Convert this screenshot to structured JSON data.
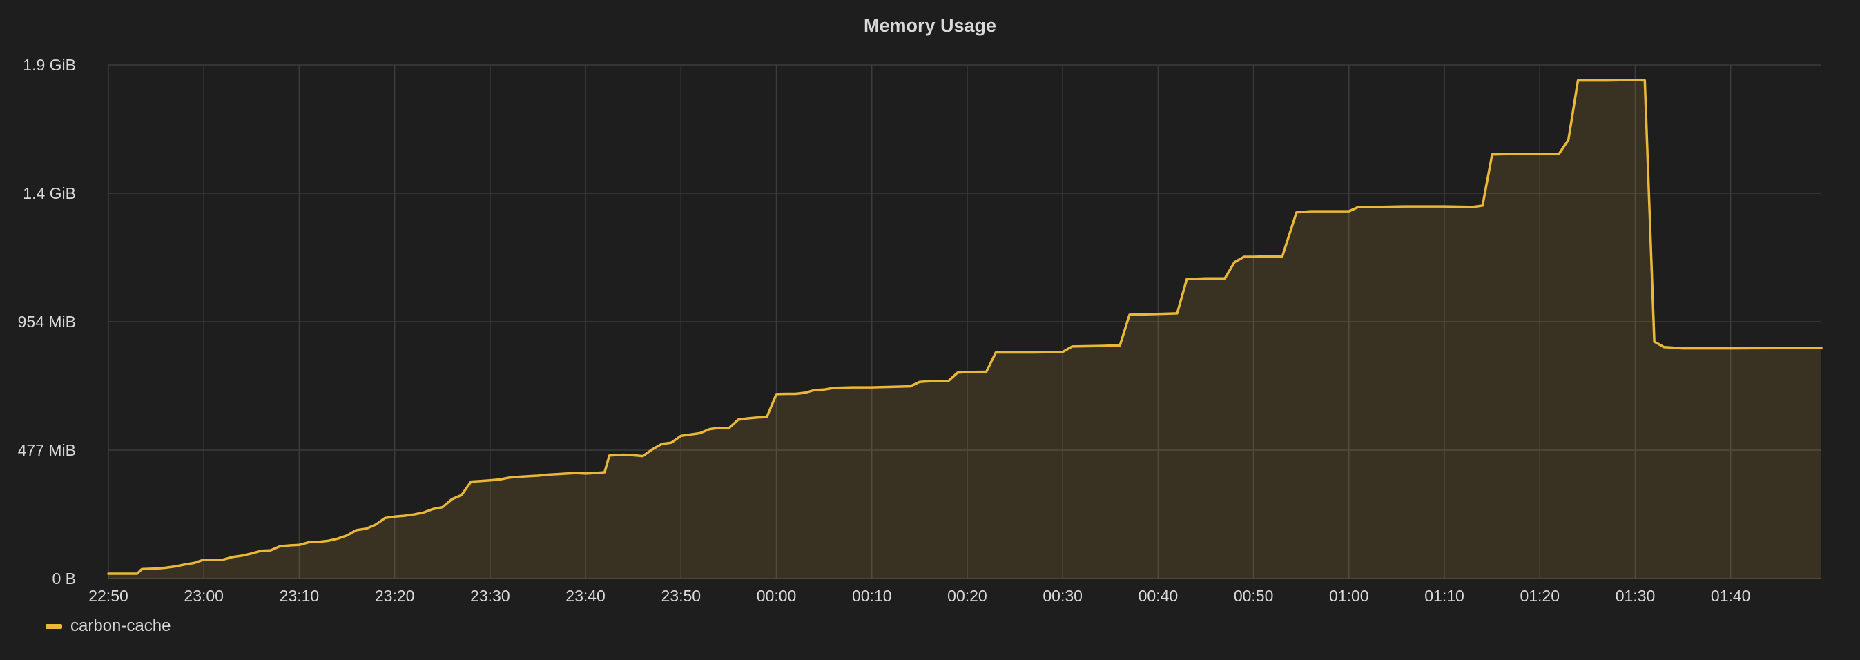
{
  "panel": {
    "title": "Memory Usage"
  },
  "colors": {
    "background": "#1f1e1f",
    "grid": "#3c3c3c",
    "text": "#d8d9da",
    "series": "#eab839",
    "fill": "#332b21"
  },
  "chart_data": {
    "type": "area",
    "title": "Memory Usage",
    "xlabel": "",
    "ylabel": "",
    "x_ticks": [
      "22:50",
      "23:00",
      "23:10",
      "23:20",
      "23:30",
      "23:40",
      "23:50",
      "00:00",
      "00:10",
      "00:20",
      "00:30",
      "00:40",
      "00:50",
      "01:00",
      "01:10",
      "01:20",
      "01:30",
      "01:40"
    ],
    "y_ticks": [
      "0 B",
      "477 MiB",
      "954 MiB",
      "1.4 GiB",
      "1.9 GiB"
    ],
    "y_unit": "MiB",
    "y_tick_values_mib": [
      0,
      477,
      954,
      1431,
      1908
    ],
    "ylim_mib": [
      0,
      1908
    ],
    "x_unit": "minutes after 22:50",
    "xlim_minutes": [
      0,
      179.5
    ],
    "grid": true,
    "legend_position": "bottom-left",
    "series": [
      {
        "name": "carbon-cache",
        "points": [
          [
            0,
            18
          ],
          [
            2,
            18
          ],
          [
            3,
            18
          ],
          [
            3.5,
            35
          ],
          [
            5,
            37
          ],
          [
            6,
            40
          ],
          [
            7,
            45
          ],
          [
            8,
            52
          ],
          [
            9,
            58
          ],
          [
            10,
            70
          ],
          [
            11,
            70
          ],
          [
            12,
            70
          ],
          [
            13,
            80
          ],
          [
            14,
            85
          ],
          [
            15,
            93
          ],
          [
            16,
            103
          ],
          [
            17,
            105
          ],
          [
            18,
            120
          ],
          [
            19,
            123
          ],
          [
            20,
            125
          ],
          [
            21,
            135
          ],
          [
            22,
            136
          ],
          [
            23,
            140
          ],
          [
            24,
            148
          ],
          [
            25,
            160
          ],
          [
            26,
            180
          ],
          [
            27,
            185
          ],
          [
            28,
            200
          ],
          [
            29,
            225
          ],
          [
            30,
            230
          ],
          [
            31,
            233
          ],
          [
            32,
            238
          ],
          [
            33,
            245
          ],
          [
            34,
            258
          ],
          [
            35,
            265
          ],
          [
            36,
            295
          ],
          [
            37,
            310
          ],
          [
            38,
            360
          ],
          [
            39,
            362
          ],
          [
            40,
            365
          ],
          [
            41,
            368
          ],
          [
            42,
            375
          ],
          [
            43,
            378
          ],
          [
            44,
            380
          ],
          [
            45,
            382
          ],
          [
            46,
            386
          ],
          [
            47,
            388
          ],
          [
            48,
            390
          ],
          [
            49,
            392
          ],
          [
            50,
            390
          ],
          [
            51,
            392
          ],
          [
            52,
            395
          ],
          [
            52.5,
            457
          ],
          [
            54,
            460
          ],
          [
            55,
            458
          ],
          [
            56,
            455
          ],
          [
            57,
            480
          ],
          [
            58,
            500
          ],
          [
            59,
            505
          ],
          [
            60,
            530
          ],
          [
            61,
            535
          ],
          [
            62,
            540
          ],
          [
            63,
            555
          ],
          [
            64,
            560
          ],
          [
            65,
            558
          ],
          [
            66,
            590
          ],
          [
            67,
            595
          ],
          [
            68,
            598
          ],
          [
            69,
            600
          ],
          [
            70,
            685
          ],
          [
            71,
            686
          ],
          [
            72,
            686
          ],
          [
            73,
            690
          ],
          [
            74,
            700
          ],
          [
            75,
            702
          ],
          [
            76,
            708
          ],
          [
            78,
            710
          ],
          [
            80,
            710
          ],
          [
            82,
            712
          ],
          [
            84,
            714
          ],
          [
            85,
            730
          ],
          [
            86,
            733
          ],
          [
            88,
            733
          ],
          [
            89,
            765
          ],
          [
            90,
            767
          ],
          [
            92,
            768
          ],
          [
            93,
            840
          ],
          [
            95,
            840
          ],
          [
            97,
            840
          ],
          [
            100,
            842
          ],
          [
            101,
            862
          ],
          [
            104,
            864
          ],
          [
            106,
            866
          ],
          [
            107,
            980
          ],
          [
            110,
            983
          ],
          [
            112,
            985
          ],
          [
            113,
            1112
          ],
          [
            115,
            1115
          ],
          [
            117,
            1115
          ],
          [
            118,
            1175
          ],
          [
            119,
            1195
          ],
          [
            120,
            1195
          ],
          [
            122,
            1197
          ],
          [
            123,
            1195
          ],
          [
            124.5,
            1360
          ],
          [
            126,
            1364
          ],
          [
            128,
            1364
          ],
          [
            130,
            1364
          ],
          [
            131,
            1380
          ],
          [
            133,
            1380
          ],
          [
            136,
            1382
          ],
          [
            140,
            1382
          ],
          [
            143,
            1380
          ],
          [
            144,
            1385
          ],
          [
            145,
            1575
          ],
          [
            148,
            1578
          ],
          [
            152,
            1577
          ],
          [
            153,
            1630
          ],
          [
            154,
            1850
          ],
          [
            157,
            1850
          ],
          [
            160,
            1852
          ],
          [
            161,
            1850
          ],
          [
            162,
            880
          ],
          [
            163,
            860
          ],
          [
            165,
            855
          ],
          [
            170,
            855
          ],
          [
            175,
            856
          ],
          [
            179.5,
            856
          ]
        ]
      }
    ]
  },
  "legend": {
    "items": [
      {
        "label": "carbon-cache"
      }
    ]
  }
}
